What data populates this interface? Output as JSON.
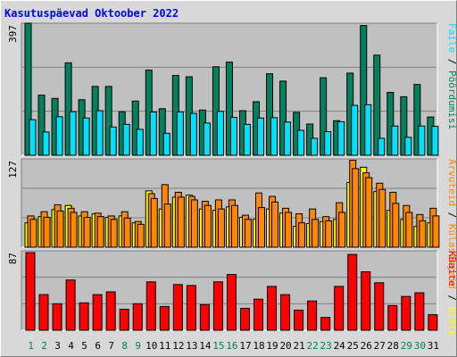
{
  "title": "Kasutuspäevad Oktoober 2022",
  "days": [
    "1",
    "2",
    "3",
    "4",
    "5",
    "6",
    "7",
    "8",
    "9",
    "10",
    "11",
    "12",
    "13",
    "14",
    "15",
    "16",
    "17",
    "18",
    "19",
    "20",
    "21",
    "22",
    "23",
    "24",
    "25",
    "26",
    "27",
    "28",
    "29",
    "30",
    "31"
  ],
  "weekend_days": [
    "1",
    "2",
    "8",
    "9",
    "15",
    "16",
    "22",
    "23",
    "29",
    "30"
  ],
  "colors": {
    "page": "#00805c",
    "file": "#00e0ff",
    "hit": "#ffff00",
    "visit": "#ff8800",
    "kbyte": "#ff0000",
    "title": "#0000ff",
    "weekend_label": "#00805c",
    "weekday_label": "#000000"
  },
  "chart_data": [
    {
      "type": "bar",
      "ymax_label": "397",
      "ylim": [
        0,
        397
      ],
      "legend": [
        {
          "label": "Pöördumisi",
          "color": "#00805c"
        },
        {
          "label": "Faile",
          "color": "#00e0ff"
        }
      ],
      "series": [
        {
          "name": "Pöördumisi",
          "values": [
            397,
            181,
            171,
            278,
            167,
            207,
            207,
            131,
            163,
            256,
            140,
            240,
            236,
            136,
            266,
            280,
            134,
            161,
            245,
            223,
            129,
            94,
            233,
            104,
            247,
            390,
            301,
            189,
            176,
            213,
            115
          ]
        },
        {
          "name": "Faile",
          "values": [
            107,
            70,
            116,
            131,
            112,
            134,
            85,
            93,
            78,
            130,
            66,
            130,
            126,
            97,
            132,
            114,
            93,
            112,
            113,
            100,
            75,
            51,
            71,
            101,
            150,
            152,
            51,
            88,
            54,
            88,
            87
          ]
        }
      ]
    },
    {
      "type": "bar",
      "ymax_label": "127",
      "ylim": [
        0,
        127
      ],
      "legend": [
        {
          "label": "Hitte",
          "color": "#ffff00"
        },
        {
          "label": "Külastajaid",
          "color": "#ff8800"
        },
        {
          "label": "Arvuteid",
          "color": "#ff8800"
        }
      ],
      "series": [
        {
          "name": "Hitte",
          "values": [
            35,
            44,
            54,
            60,
            45,
            48,
            43,
            45,
            35,
            81,
            55,
            72,
            75,
            55,
            53,
            58,
            43,
            40,
            55,
            49,
            30,
            34,
            37,
            40,
            93,
            115,
            80,
            53,
            40,
            30,
            35
          ]
        },
        {
          "name": "Külastajaid",
          "values": [
            45,
            51,
            61,
            56,
            51,
            49,
            45,
            51,
            37,
            77,
            90,
            79,
            73,
            66,
            68,
            68,
            46,
            78,
            73,
            56,
            48,
            55,
            44,
            64,
            125,
            107,
            92,
            79,
            60,
            47,
            56
          ]
        },
        {
          "name": "Arvuteid",
          "values": [
            40,
            43,
            52,
            50,
            43,
            44,
            40,
            42,
            33,
            70,
            62,
            72,
            68,
            60,
            55,
            60,
            40,
            57,
            65,
            50,
            35,
            40,
            38,
            50,
            113,
            100,
            83,
            63,
            50,
            38,
            45
          ]
        }
      ]
    },
    {
      "type": "bar",
      "ymax_label": "87",
      "ylim": [
        0,
        87
      ],
      "legend": [
        {
          "label": "KBaite",
          "color": "#ff0000"
        }
      ],
      "series": [
        {
          "name": "KBaite",
          "values": [
            85,
            39,
            29,
            55,
            30,
            39,
            42,
            23,
            29,
            53,
            26,
            50,
            49,
            28,
            53,
            61,
            24,
            34,
            48,
            39,
            22,
            32,
            14,
            48,
            83,
            64,
            52,
            27,
            37,
            41,
            17
          ]
        }
      ]
    }
  ]
}
